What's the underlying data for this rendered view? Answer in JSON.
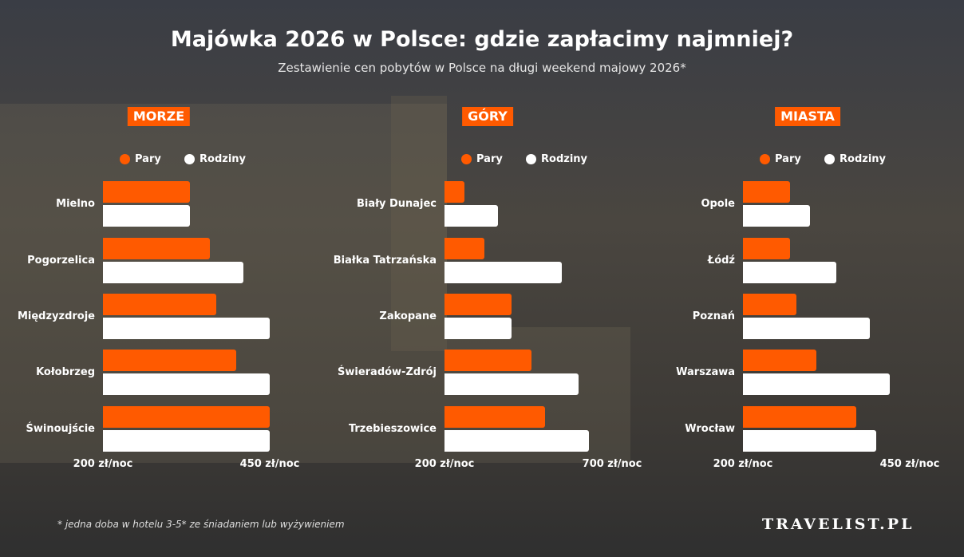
{
  "title": "Majówka 2026 w Polsce: gdzie zapłacimy najmniej?",
  "subtitle": "Zestawienie cen pobytów w Polsce na długi weekend majowy 2026*",
  "footnote": "* jedna doba w hotelu 3-5* ze śniadaniem lub wyżywieniem",
  "logo": "TRAVELIST.PL",
  "colors": {
    "pary": "#ff5a00",
    "rodziny": "#ffffff"
  },
  "chart_data": [
    {
      "type": "bar",
      "orientation": "horizontal",
      "title": "MORZE",
      "legend": [
        "Pary",
        "Rodziny"
      ],
      "xlim": [
        200,
        450
      ],
      "tick_labels": [
        "200 zł/noc",
        "450 zł/noc"
      ],
      "categories": [
        "Mielno",
        "Pogorzelica",
        "Międzyzdroje",
        "Kołobrzeg",
        "Świnoujście"
      ],
      "series": [
        {
          "name": "Pary",
          "values": [
            330,
            360,
            370,
            400,
            450
          ]
        },
        {
          "name": "Rodziny",
          "values": [
            330,
            410,
            450,
            450,
            450
          ]
        }
      ]
    },
    {
      "type": "bar",
      "orientation": "horizontal",
      "title": "GÓRY",
      "legend": [
        "Pary",
        "Rodziny"
      ],
      "xlim": [
        200,
        700
      ],
      "tick_labels": [
        "200 zł/noc",
        "700 zł/noc"
      ],
      "categories": [
        "Biały Dunajec",
        "Białka Tatrzańska",
        "Zakopane",
        "Świeradów-Zdrój",
        "Trzebieszowice"
      ],
      "series": [
        {
          "name": "Pary",
          "values": [
            260,
            320,
            400,
            460,
            500
          ]
        },
        {
          "name": "Rodziny",
          "values": [
            360,
            550,
            400,
            600,
            630
          ]
        }
      ]
    },
    {
      "type": "bar",
      "orientation": "horizontal",
      "title": "MIASTA",
      "legend": [
        "Pary",
        "Rodziny"
      ],
      "xlim": [
        200,
        450
      ],
      "tick_labels": [
        "200 zł/noc",
        "450 zł/noc"
      ],
      "categories": [
        "Opole",
        "Łódź",
        "Poznań",
        "Warszawa",
        "Wrocław"
      ],
      "series": [
        {
          "name": "Pary",
          "values": [
            270,
            270,
            280,
            310,
            370
          ]
        },
        {
          "name": "Rodziny",
          "values": [
            300,
            340,
            390,
            420,
            400
          ]
        }
      ]
    }
  ]
}
